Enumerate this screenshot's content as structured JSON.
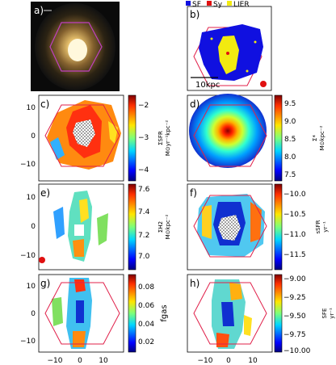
{
  "figure": {
    "panel_labels": [
      "a)",
      "b)",
      "c)",
      "d)",
      "e)",
      "f)",
      "g)",
      "h)"
    ],
    "legend": [
      {
        "label": "SF",
        "color": "#1010e0"
      },
      {
        "label": "Sy",
        "color": "#e01010"
      },
      {
        "label": "LIER",
        "color": "#f2ea10"
      }
    ],
    "scale_bar_label": "10kpc",
    "hexagon_color": "#e0204a",
    "image_hexagon_color": "#c040c0",
    "beam_color": "#e01010",
    "x_axis_ticks": [
      "−10",
      "0",
      "10"
    ],
    "y_axis_ticks": [
      "10",
      "0",
      "−10"
    ],
    "colorbars": {
      "c": {
        "label_top": "ΣSFR",
        "label_bottom": "M⊙yr⁻¹kpc⁻²",
        "ticks": [
          "−2",
          "−3",
          "−4"
        ],
        "cmap": "jet"
      },
      "d": {
        "label_top": "Σ*",
        "label_bottom": "M⊙kpc⁻²",
        "ticks": [
          "9.5",
          "9.0",
          "8.5",
          "8.0",
          "7.5"
        ],
        "cmap": "jet"
      },
      "e": {
        "label_top": "ΣH2",
        "label_bottom": "M⊙kpc⁻²",
        "ticks": [
          "7.6",
          "7.4",
          "7.2",
          "7.0"
        ],
        "cmap": "jet"
      },
      "f": {
        "label_top": "sSFR",
        "label_bottom": "yr⁻¹",
        "ticks": [
          "−10.0",
          "−10.5",
          "−11.0",
          "−11.5"
        ],
        "cmap": "jet"
      },
      "g": {
        "label": "fgas",
        "ticks": [
          "0.08",
          "0.06",
          "0.04",
          "0.02"
        ],
        "cmap": "jet"
      },
      "h": {
        "label_top": "SFE",
        "label_bottom": "yr⁻¹",
        "ticks": [
          "−9.00",
          "−9.25",
          "−9.50",
          "−9.75",
          "−10.00"
        ],
        "cmap": "jet"
      }
    }
  }
}
